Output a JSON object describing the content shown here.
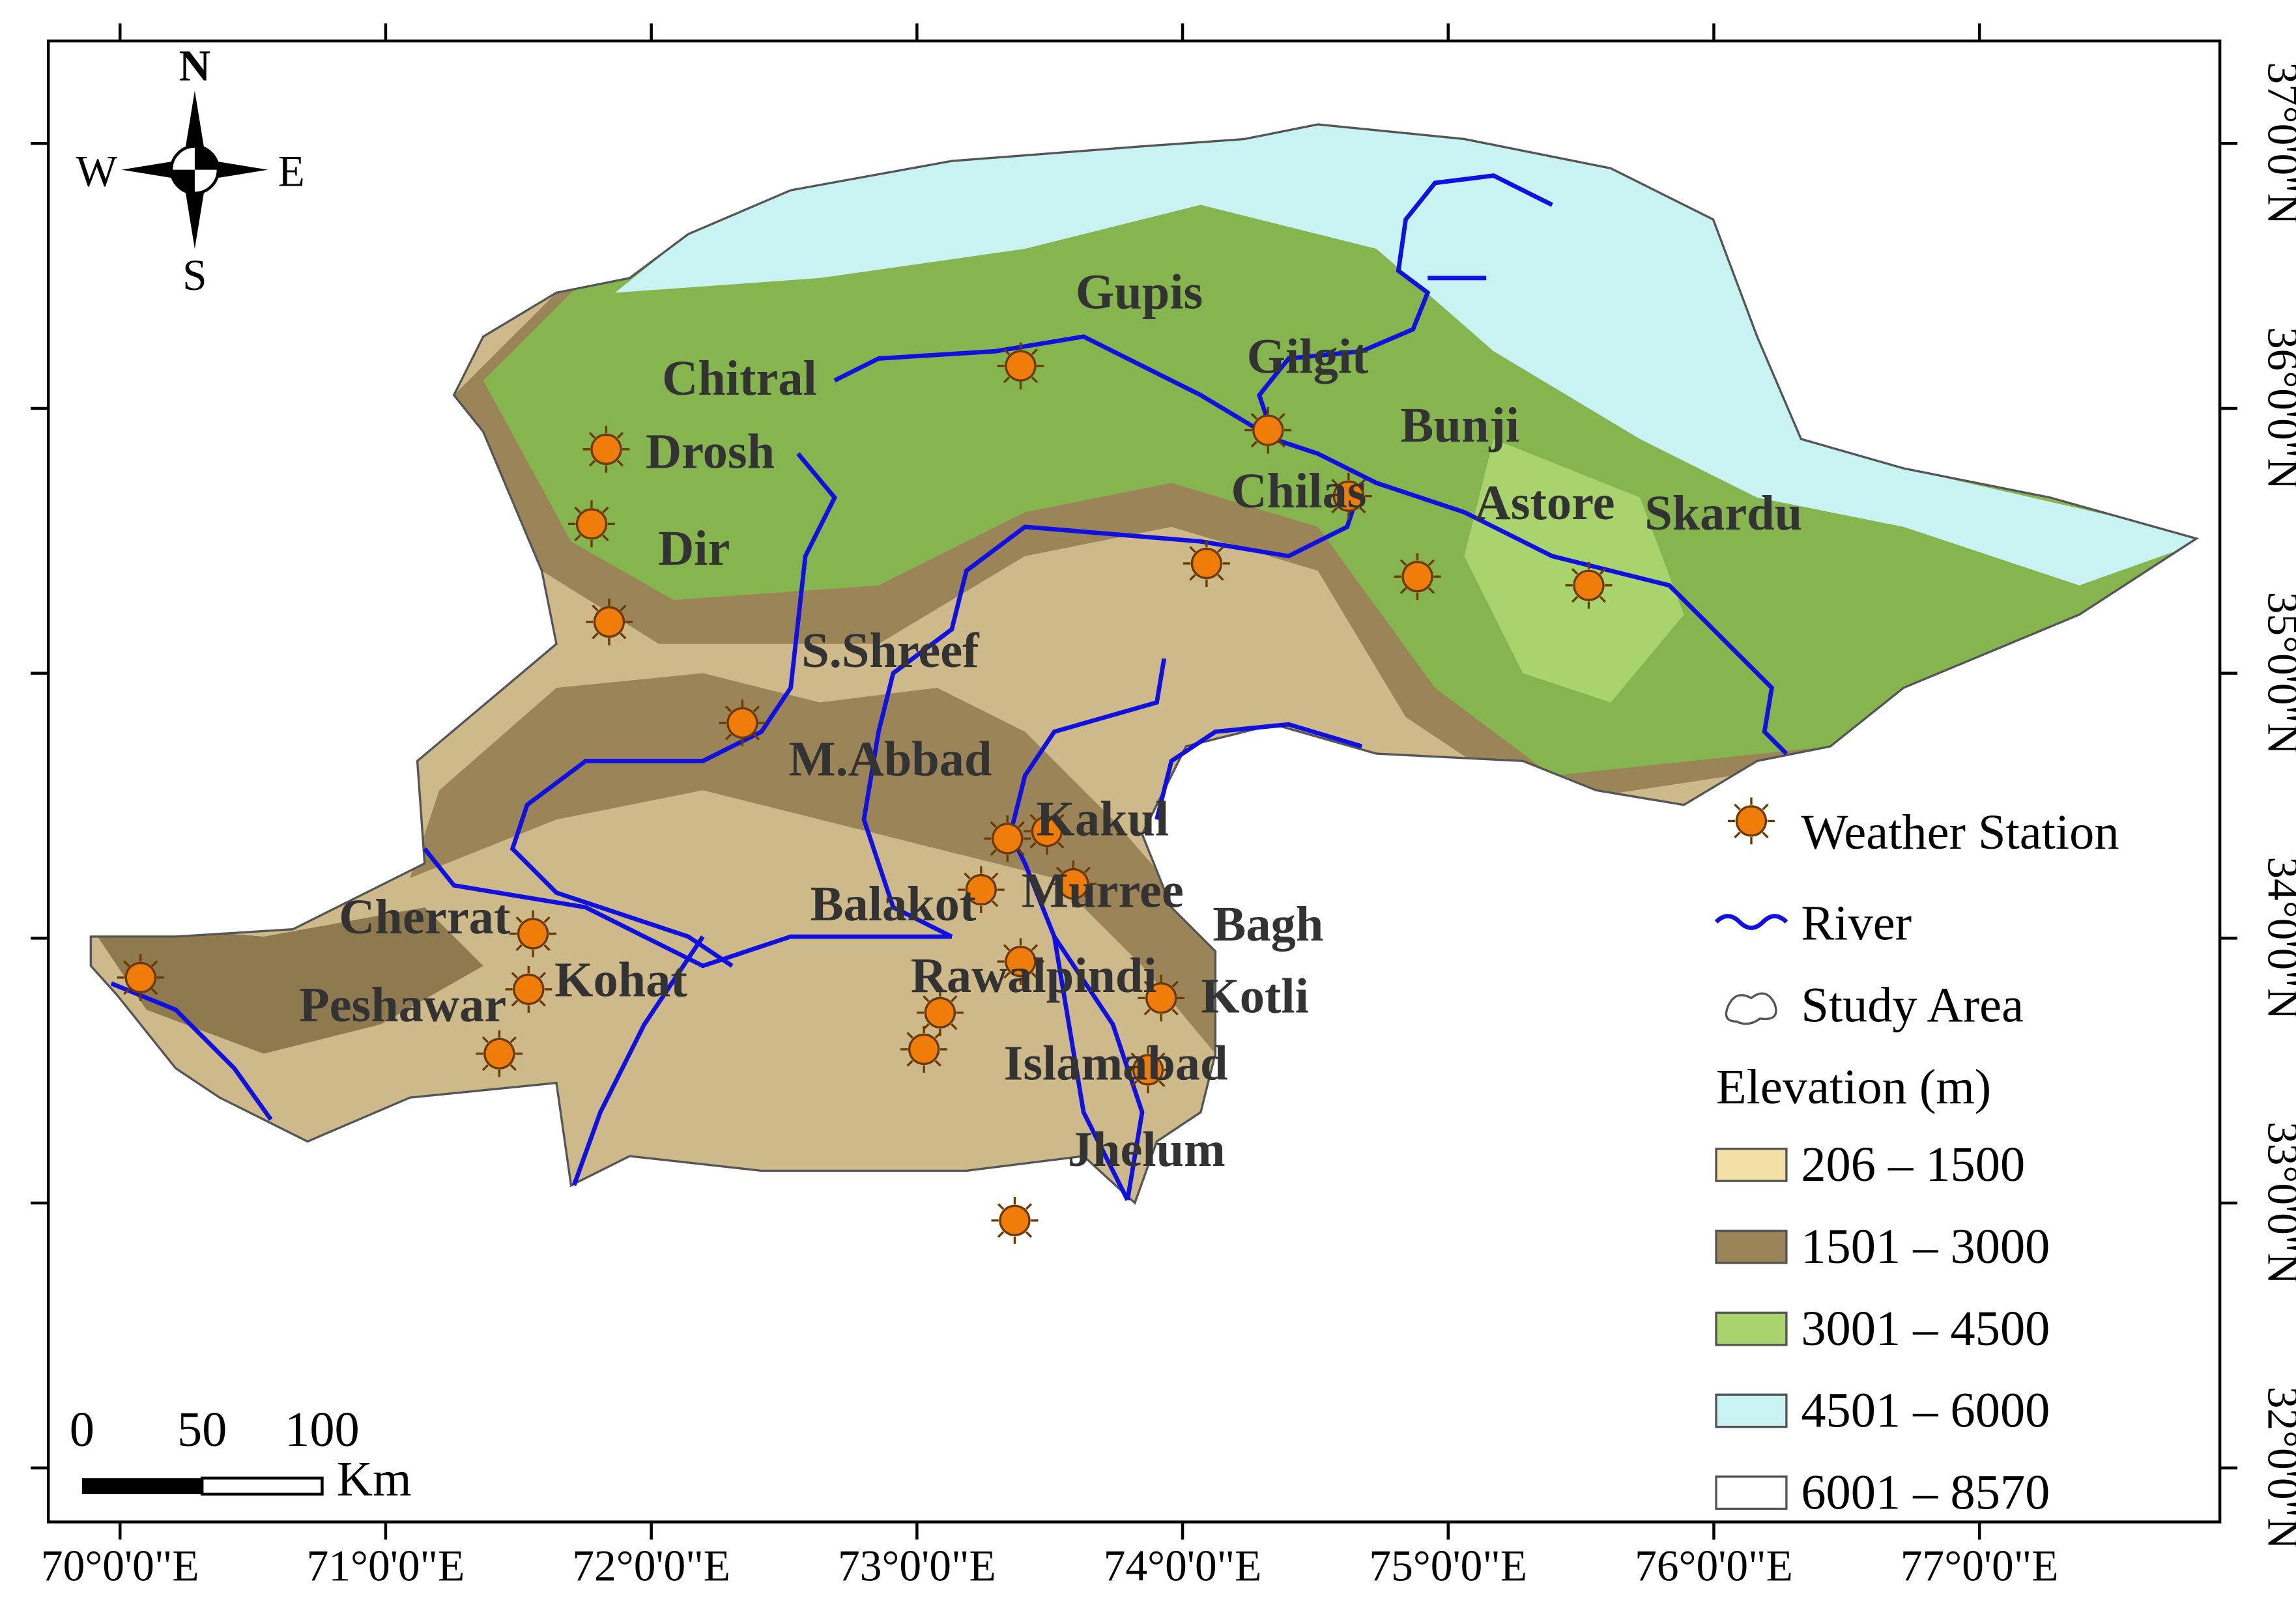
{
  "map": {
    "xlim": [
      69.73,
      77.905
    ],
    "ylim": [
      31.796,
      37.387
    ],
    "xticks": [
      {
        "value": 70,
        "label": "70°0'0\"E"
      },
      {
        "value": 71,
        "label": "71°0'0\"E"
      },
      {
        "value": 72,
        "label": "72°0'0\"E"
      },
      {
        "value": 73,
        "label": "73°0'0\"E"
      },
      {
        "value": 74,
        "label": "74°0'0\"E"
      },
      {
        "value": 75,
        "label": "75°0'0\"E"
      },
      {
        "value": 76,
        "label": "76°0'0\"E"
      },
      {
        "value": 77,
        "label": "77°0'0\"E"
      }
    ],
    "yticks": [
      {
        "value": 32,
        "label": "32°0'0\"N"
      },
      {
        "value": 33,
        "label": "33°0'0\"N"
      },
      {
        "value": 34,
        "label": "34°0'0\"N"
      },
      {
        "value": 35,
        "label": "35°0'0\"N"
      },
      {
        "value": 36,
        "label": "36°0'0\"N"
      },
      {
        "value": 37,
        "label": "37°0'0\"N"
      }
    ],
    "stations": [
      "Gupis",
      "Gilgit",
      "Chitral",
      "Drosh",
      "Bunji",
      "Chilas",
      "Astore",
      "Skardu",
      "Dir",
      "S.Shreef",
      "M.Abbad",
      "Kakul",
      "Murree",
      "Balakot",
      "Bagh",
      "Cherrat",
      "Kohat",
      "Peshawar",
      "Rawalpindi",
      "Kotli",
      "Islamabad",
      "Jhelum"
    ],
    "compass": {
      "north": "N",
      "south": "S",
      "west": "W",
      "east": "E"
    },
    "scale_bar": {
      "labels": [
        "0",
        "50",
        "100"
      ],
      "unit": "Km"
    },
    "legend": {
      "station": "Weather Station",
      "river": "River",
      "area": "Study Area",
      "elevation_title": "Elevation (m)",
      "classes": [
        {
          "label": "206 – 1500",
          "color": "#f3e0a6"
        },
        {
          "label": "1501  – 3000",
          "color": "#9b8558"
        },
        {
          "label": "3001  – 4500",
          "color": "#a9d36c"
        },
        {
          "label": "4501  – 6000",
          "color": "#c9f2f3"
        },
        {
          "label": "6001  – 8570",
          "color": "#ffffff"
        }
      ]
    }
  }
}
